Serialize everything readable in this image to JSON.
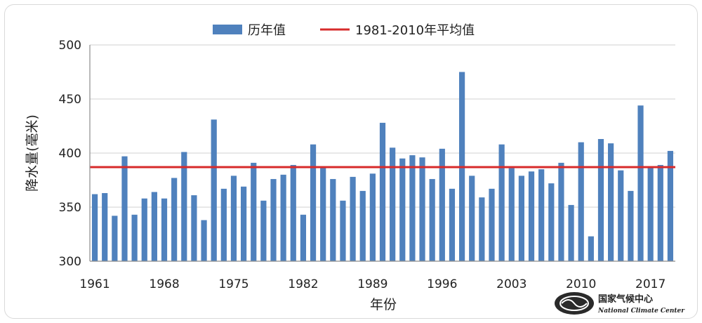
{
  "chart_data": {
    "type": "bar",
    "xlabel": "年份",
    "ylabel": "降水量(毫米)",
    "ylim": [
      300,
      500
    ],
    "yticks": [
      300,
      350,
      400,
      450,
      500
    ],
    "xtick_labels": [
      "1961",
      "1968",
      "1975",
      "1982",
      "1989",
      "1996",
      "2003",
      "2010",
      "2017"
    ],
    "legend_position": "top-center",
    "series": [
      {
        "name": "历年值",
        "color": "#4f81bd",
        "x": [
          1961,
          1962,
          1963,
          1964,
          1965,
          1966,
          1967,
          1968,
          1969,
          1970,
          1971,
          1972,
          1973,
          1974,
          1975,
          1976,
          1977,
          1978,
          1979,
          1980,
          1981,
          1982,
          1983,
          1984,
          1985,
          1986,
          1987,
          1988,
          1989,
          1990,
          1991,
          1992,
          1993,
          1994,
          1995,
          1996,
          1997,
          1998,
          1999,
          2000,
          2001,
          2002,
          2003,
          2004,
          2005,
          2006,
          2007,
          2008,
          2009,
          2010,
          2011,
          2012,
          2013,
          2014,
          2015,
          2016,
          2017,
          2018,
          2019
        ],
        "values": [
          362,
          363,
          342,
          397,
          343,
          358,
          364,
          358,
          377,
          401,
          361,
          338,
          431,
          367,
          379,
          369,
          391,
          356,
          376,
          380,
          389,
          343,
          408,
          387,
          376,
          356,
          378,
          365,
          381,
          428,
          405,
          395,
          398,
          396,
          376,
          404,
          367,
          475,
          379,
          359,
          367,
          408,
          386,
          379,
          383,
          385,
          372,
          391,
          352,
          410,
          323,
          413,
          409,
          384,
          365,
          444,
          387,
          389,
          402
        ]
      },
      {
        "name": "1981-2010年平均值",
        "color": "#d72b2b",
        "reference_value": 387
      }
    ]
  },
  "logo": {
    "name_cn": "国家气候中心",
    "name_en": "National Climate Center"
  }
}
